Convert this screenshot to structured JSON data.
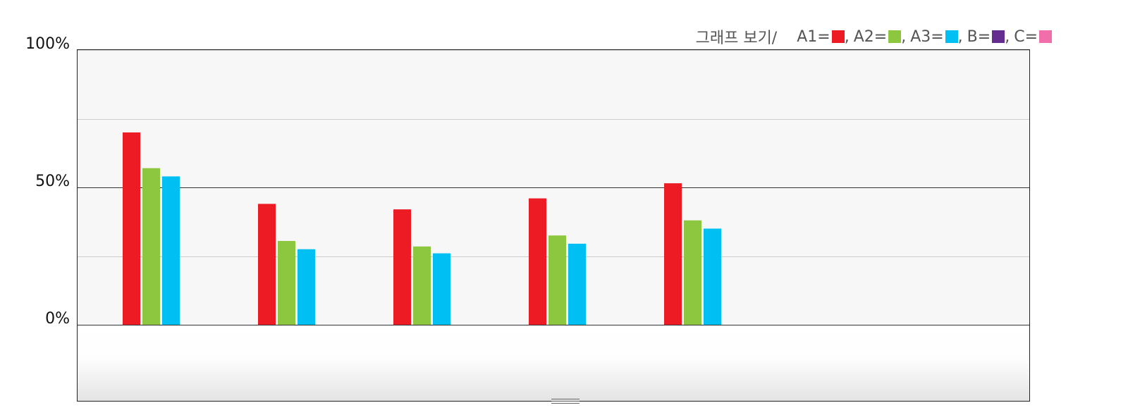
{
  "legend": {
    "title": "그래프 보기/",
    "entries": [
      {
        "label": "A1=",
        "sep": ",",
        "color": "#ed1c24"
      },
      {
        "label": "A2=",
        "sep": ",",
        "color": "#8dc63f"
      },
      {
        "label": "A3=",
        "sep": ",",
        "color": "#00bff3"
      },
      {
        "label": "B=",
        "sep": ",",
        "color": "#662d91"
      },
      {
        "label": "C=",
        "sep": "",
        "color": "#f06eaa"
      }
    ]
  },
  "chart_data": {
    "type": "bar",
    "categories": [
      "",
      "",
      "",
      "",
      "",
      "",
      ""
    ],
    "ylim": [
      0,
      100
    ],
    "yticks": [
      "0%",
      "50%",
      "100%"
    ],
    "grid": true,
    "legend_position": "top-right",
    "series": [
      {
        "name": "A1",
        "color": "#ed1c24",
        "values": [
          70,
          44,
          42,
          46,
          51.5,
          null,
          null
        ]
      },
      {
        "name": "A2",
        "color": "#8dc63f",
        "values": [
          57,
          30.5,
          28.5,
          32.5,
          38,
          null,
          null
        ]
      },
      {
        "name": "A3",
        "color": "#00bff3",
        "values": [
          54,
          27.5,
          26,
          29.5,
          35,
          null,
          null
        ]
      },
      {
        "name": "B",
        "color": "#662d91",
        "values": [
          null,
          null,
          null,
          null,
          null,
          null,
          null
        ]
      },
      {
        "name": "C",
        "color": "#f06eaa",
        "values": [
          null,
          null,
          null,
          null,
          null,
          null,
          null
        ]
      }
    ]
  }
}
